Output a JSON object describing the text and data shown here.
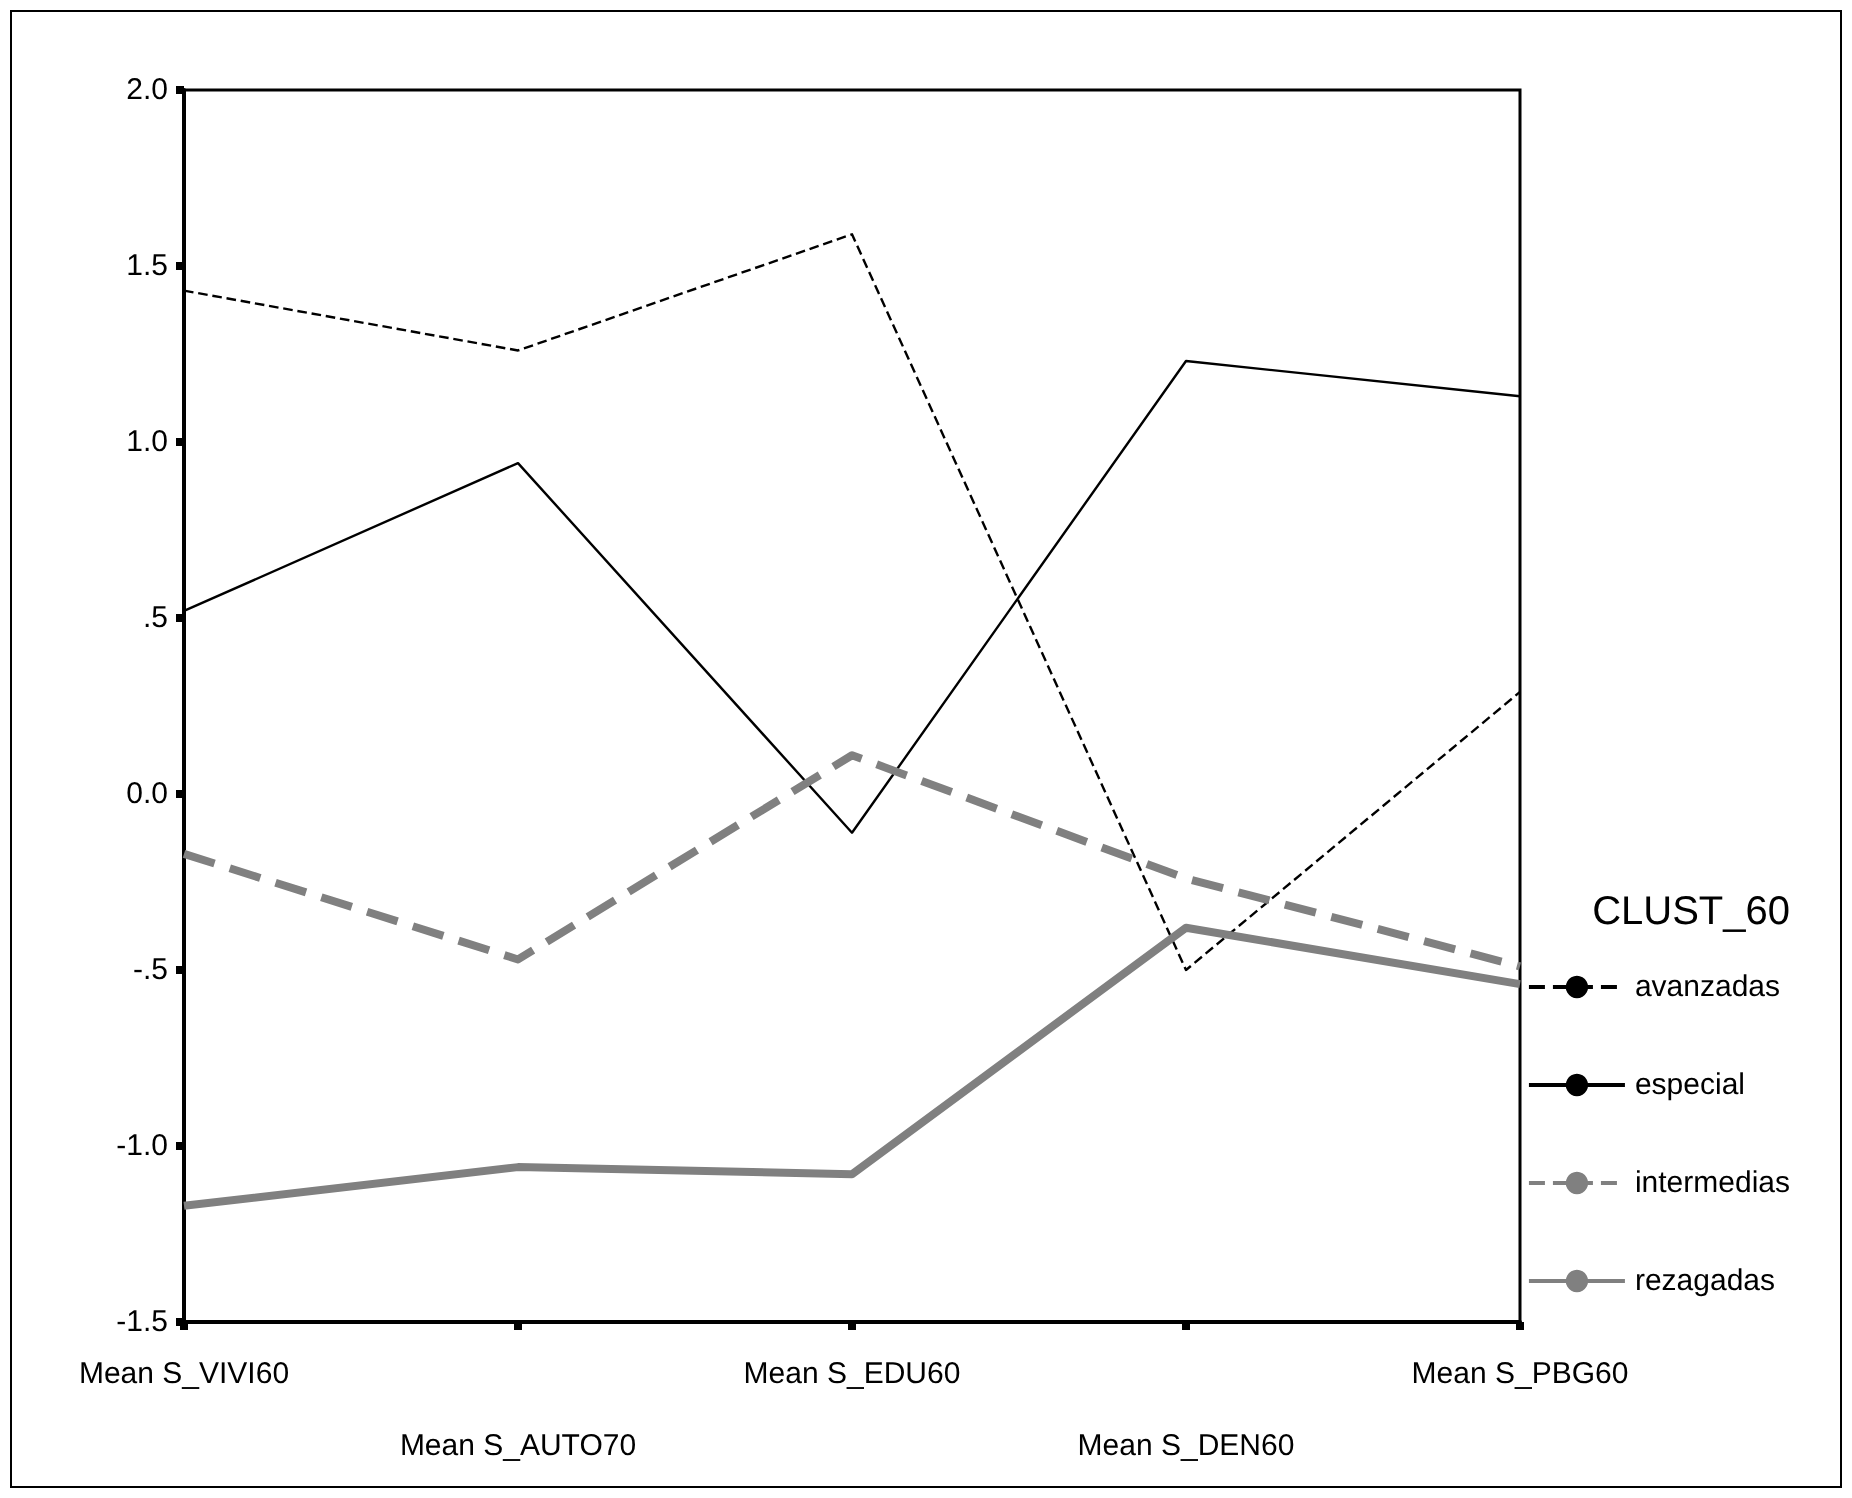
{
  "chart_data": {
    "type": "line",
    "categories": [
      "Mean S_VIVI60",
      "Mean S_AUTO70",
      "Mean S_EDU60",
      "Mean S_DEN60",
      "Mean S_PBG60"
    ],
    "series": [
      {
        "name": "avanzadas",
        "color": "#000000",
        "line_style": "dashed",
        "values": [
          1.43,
          1.26,
          1.59,
          -0.5,
          0.29
        ]
      },
      {
        "name": "especial",
        "color": "#000000",
        "line_style": "solid",
        "values": [
          0.52,
          0.94,
          -0.11,
          1.23,
          1.13
        ]
      },
      {
        "name": "intermedias",
        "color": "#808080",
        "line_style": "dashed",
        "values": [
          -0.17,
          -0.47,
          0.11,
          -0.24,
          -0.49
        ]
      },
      {
        "name": "rezagadas",
        "color": "#808080",
        "line_style": "solid",
        "values": [
          -1.17,
          -1.06,
          -1.08,
          -0.38,
          -0.54
        ]
      }
    ],
    "legend_title": "CLUST_60",
    "ylim": [
      -1.5,
      2.0
    ],
    "yticks": [
      {
        "value": -1.5,
        "label": "-1.5"
      },
      {
        "value": -1.0,
        "label": "-1.0"
      },
      {
        "value": -0.5,
        "label": "-.5"
      },
      {
        "value": 0,
        "label": "0.0"
      },
      {
        "value": 0.5,
        "label": ".5"
      },
      {
        "value": 1.0,
        "label": "1.0"
      },
      {
        "value": 1.5,
        "label": "1.5"
      },
      {
        "value": 2.0,
        "label": "2.0"
      }
    ],
    "grid": false,
    "legend": "right",
    "marker": "none"
  }
}
